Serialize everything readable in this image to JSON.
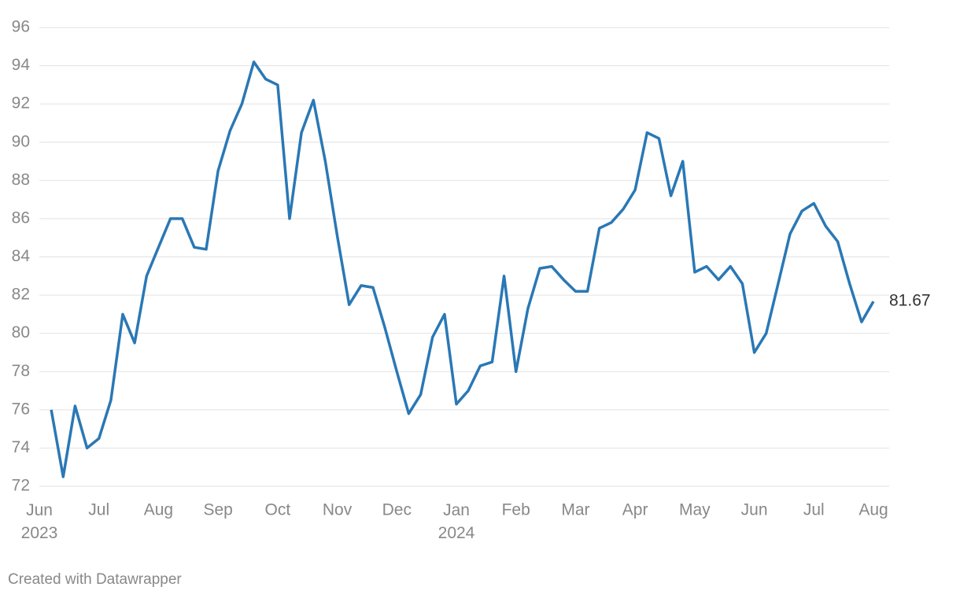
{
  "chart_data": {
    "type": "line",
    "categories": [
      "Jun 2023",
      null,
      null,
      null,
      null,
      "Jul",
      null,
      null,
      null,
      null,
      "Aug",
      null,
      null,
      null,
      null,
      "Sep",
      null,
      null,
      null,
      null,
      "Oct",
      null,
      null,
      null,
      null,
      "Nov",
      null,
      null,
      null,
      null,
      "Dec",
      null,
      null,
      null,
      null,
      "Jan 2024",
      null,
      null,
      null,
      null,
      "Feb",
      null,
      null,
      null,
      null,
      "Mar",
      null,
      null,
      null,
      null,
      "Apr",
      null,
      null,
      null,
      null,
      "May",
      null,
      null,
      null,
      null,
      "Jun",
      null,
      null,
      null,
      null,
      "Jul",
      null,
      null,
      null,
      null,
      "Aug"
    ],
    "series": [
      {
        "color": "#2a78b5",
        "values": [
          null,
          76,
          72.5,
          76.2,
          74,
          74.5,
          76.5,
          81,
          79.5,
          83,
          84.5,
          86,
          86,
          84.5,
          84.4,
          88.5,
          90.6,
          92,
          94.2,
          93.3,
          93,
          86,
          90.5,
          92.2,
          89,
          85.1,
          81.5,
          82.5,
          82.4,
          80.3,
          78,
          75.8,
          76.8,
          79.8,
          81,
          76.3,
          77,
          78.3,
          78.5,
          83,
          78,
          81.3,
          83.4,
          83.5,
          82.8,
          82.2,
          82.2,
          85.5,
          85.8,
          86.5,
          87.5,
          90.5,
          90.2,
          87.2,
          89,
          83.2,
          83.5,
          82.8,
          83.5,
          82.6,
          79,
          80,
          82.6,
          85.2,
          86.4,
          86.8,
          85.6,
          84.8,
          82.6,
          80.6,
          81.67
        ],
        "value_labels": [
          null,
          null,
          null,
          null,
          null,
          null,
          null,
          null,
          null,
          null,
          null,
          null,
          null,
          null,
          null,
          null,
          null,
          null,
          null,
          null,
          null,
          null,
          null,
          null,
          null,
          null,
          null,
          null,
          null,
          null,
          null,
          null,
          null,
          null,
          null,
          null,
          null,
          null,
          null,
          null,
          null,
          null,
          null,
          null,
          null,
          null,
          null,
          null,
          null,
          null,
          null,
          null,
          null,
          null,
          null,
          null,
          null,
          null,
          null,
          null,
          null,
          null,
          null,
          null,
          null,
          null,
          null,
          null,
          null,
          null,
          "81.67"
        ]
      }
    ],
    "ylim": [
      71.7,
      96.6
    ],
    "yticks": [
      72,
      74,
      76,
      78,
      80,
      82,
      84,
      86,
      88,
      90,
      92,
      94,
      96
    ],
    "grid": true,
    "credit": "Created with Datawrapper"
  }
}
